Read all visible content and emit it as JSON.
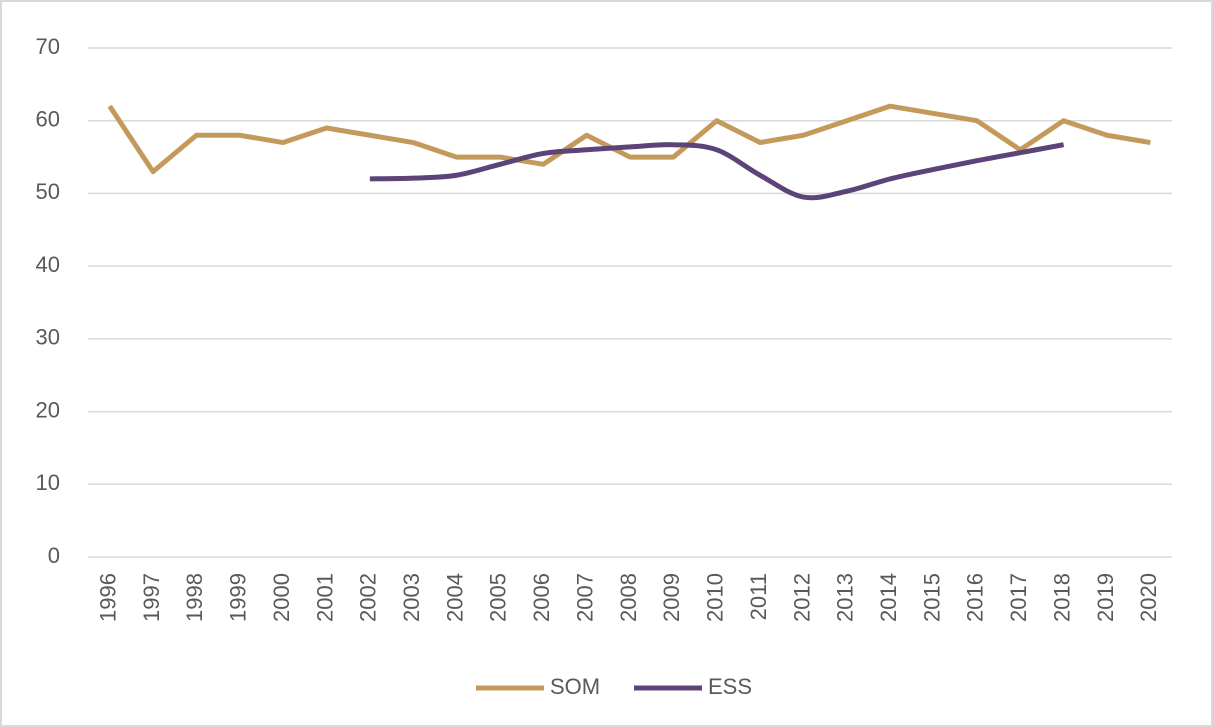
{
  "chart_data": {
    "type": "line",
    "categories": [
      "1996",
      "1997",
      "1998",
      "1999",
      "2000",
      "2001",
      "2002",
      "2003",
      "2004",
      "2005",
      "2006",
      "2007",
      "2008",
      "2009",
      "2010",
      "2011",
      "2012",
      "2013",
      "2014",
      "2015",
      "2016",
      "2017",
      "2018",
      "2019",
      "2020"
    ],
    "series": [
      {
        "name": "SOM",
        "color": "#c49a5c",
        "smooth": false,
        "values": [
          62,
          53,
          58,
          58,
          57,
          59,
          58,
          57,
          55,
          55,
          54,
          58,
          55,
          55,
          60,
          57,
          58,
          60,
          62,
          61,
          60,
          56,
          60,
          58,
          57
        ]
      },
      {
        "name": "ESS",
        "color": "#5c4378",
        "smooth": true,
        "values": [
          null,
          null,
          null,
          null,
          null,
          null,
          52,
          52.1,
          52.5,
          54,
          55.5,
          56,
          56.4,
          56.7,
          56,
          52.5,
          49.5,
          50.3,
          52,
          53.3,
          54.5,
          55.6,
          56.7,
          null,
          null
        ]
      }
    ],
    "ylim": [
      0,
      70
    ],
    "yticks": [
      0,
      10,
      20,
      30,
      40,
      50,
      60,
      70
    ],
    "grid": true,
    "legend": "bottom"
  }
}
